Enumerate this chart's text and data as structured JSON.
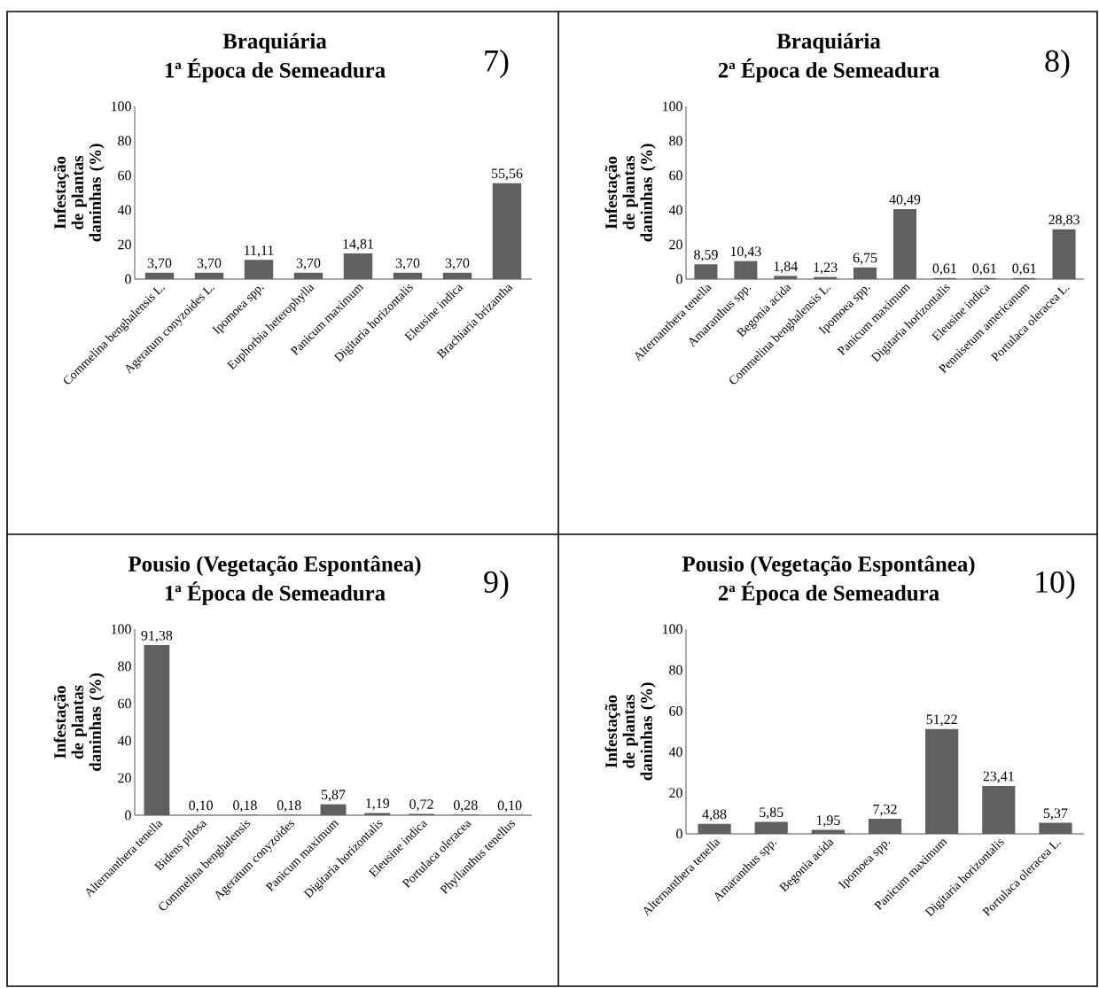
{
  "chart_data": [
    {
      "type": "bar",
      "title": "Braquiária",
      "subtitle": "1ª Época de Semeadura",
      "ylabel": "Infestação de plantas daninhas (%)",
      "annotations": [
        "7)"
      ],
      "color": "#606060",
      "ylim": [
        0,
        100
      ],
      "yticks": [
        0,
        20,
        40,
        60,
        80,
        100
      ],
      "categories": [
        "Commelina benghalensis L.",
        "Ageratum conyzoides L.",
        "Ipomoea spp.",
        "Euphorbia heterophylla",
        "Panicum maximum",
        "Digitaria  horizontalis",
        "Eleusine indica",
        "Brachiaria brizantha"
      ],
      "values": [
        3.7,
        3.7,
        11.11,
        3.7,
        14.81,
        3.7,
        3.7,
        55.56
      ],
      "value_labels": [
        "3,70",
        "3,70",
        "11,11",
        "3,70",
        "14,81",
        "3,70",
        "3,70",
        "55,56"
      ]
    },
    {
      "type": "bar",
      "title": "Braquiária",
      "subtitle": "2ª Época de Semeadura",
      "ylabel": "Infestação de plantas daninhas (%)",
      "annotations": [
        "8)"
      ],
      "color": "#606060",
      "ylim": [
        0,
        100
      ],
      "yticks": [
        0,
        20,
        40,
        60,
        80,
        100
      ],
      "categories": [
        "Alternanthera tenella",
        "Amaranthus spp.",
        "Begonia acida",
        "Commelina benghalensis L.",
        "Ipomoea spp.",
        "Panicum maximum",
        "Digitaria  horizontalis",
        "Eleusine indica",
        "Pennisetum americanum",
        "Portulaca oleracea L."
      ],
      "values": [
        8.59,
        10.43,
        1.84,
        1.23,
        6.75,
        40.49,
        0.61,
        0.61,
        0.61,
        28.83
      ],
      "value_labels": [
        "8,59",
        "10,43",
        "1,84",
        "1,23",
        "6,75",
        "40,49",
        "0,61",
        "0,61",
        "0,61",
        "28,83"
      ]
    },
    {
      "type": "bar",
      "title": "Pousio (Vegetação Espontânea)",
      "subtitle": "1ª Época de Semeadura",
      "ylabel": "Infestação de plantas daninhas (%)",
      "annotations": [
        "9)"
      ],
      "color": "#606060",
      "ylim": [
        0,
        100
      ],
      "yticks": [
        0,
        20,
        40,
        60,
        80,
        100
      ],
      "categories": [
        "Alternanthera tenella",
        "Bidens pilosa",
        "Commelina benghalensis",
        "Ageratum conyzoides",
        "Panicum maximum",
        "Digitaria  horizontalis",
        "Eleusine indica",
        "Portulaca oleracea",
        "Phyllanthus tenellus"
      ],
      "values": [
        91.38,
        0.1,
        0.18,
        0.18,
        5.87,
        1.19,
        0.72,
        0.28,
        0.1
      ],
      "value_labels": [
        "91,38",
        "0,10",
        "0,18",
        "0,18",
        "5,87",
        "1,19",
        "0,72",
        "0,28",
        "0,10"
      ]
    },
    {
      "type": "bar",
      "title": "Pousio (Vegetação Espontânea)",
      "subtitle": "2ª Época de Semeadura",
      "ylabel": "Infestação de plantas daninhas (%)",
      "annotations": [
        "10)"
      ],
      "color": "#606060",
      "ylim": [
        0,
        100
      ],
      "yticks": [
        0,
        20,
        40,
        60,
        80,
        100
      ],
      "categories": [
        "Alternanthera tenella",
        "Amaranthus spp.",
        "Begonia acida",
        "Ipomoea spp.",
        "Panicum maximum",
        "Digitaria  horizontalis",
        "Portulaca oleracea L."
      ],
      "values": [
        4.88,
        5.85,
        1.95,
        7.32,
        51.22,
        23.41,
        5.37
      ],
      "value_labels": [
        "4,88",
        "5,85",
        "1,95",
        "7,32",
        "51,22",
        "23,41",
        "5,37"
      ]
    }
  ]
}
